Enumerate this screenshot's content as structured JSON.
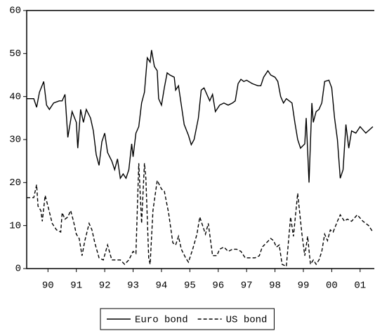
{
  "chart_data": {
    "type": "line",
    "xlim": [
      1989.75,
      2002.0
    ],
    "ylim": [
      0,
      60
    ],
    "yticks": [
      0,
      10,
      20,
      30,
      40,
      50,
      60
    ],
    "xticks": [
      {
        "value": 1990.5,
        "label": "90"
      },
      {
        "value": 1991.5,
        "label": "91"
      },
      {
        "value": 1992.5,
        "label": "92"
      },
      {
        "value": 1993.5,
        "label": "93"
      },
      {
        "value": 1994.5,
        "label": "94"
      },
      {
        "value": 1995.5,
        "label": "95"
      },
      {
        "value": 1996.5,
        "label": "96"
      },
      {
        "value": 1997.5,
        "label": "97"
      },
      {
        "value": 1998.5,
        "label": "98"
      },
      {
        "value": 1999.5,
        "label": "99"
      },
      {
        "value": 2000.5,
        "label": "00"
      },
      {
        "value": 2001.5,
        "label": "01"
      }
    ],
    "grid": false,
    "legend": "bottom",
    "series": [
      {
        "name": "Euro bond",
        "color": "#000000",
        "line_style": "solid",
        "x": [
          1989.75,
          1989.9,
          1990.0,
          1990.1,
          1990.2,
          1990.35,
          1990.45,
          1990.55,
          1990.7,
          1990.9,
          1991.0,
          1991.1,
          1991.2,
          1991.35,
          1991.5,
          1991.55,
          1991.65,
          1991.75,
          1991.85,
          1992.0,
          1992.1,
          1992.2,
          1992.3,
          1992.4,
          1992.5,
          1992.6,
          1992.75,
          1992.85,
          1992.95,
          1993.05,
          1993.15,
          1993.25,
          1993.35,
          1993.45,
          1993.5,
          1993.6,
          1993.7,
          1993.8,
          1993.9,
          1994.0,
          1994.1,
          1994.15,
          1994.25,
          1994.35,
          1994.4,
          1994.5,
          1994.6,
          1994.7,
          1994.8,
          1994.95,
          1995.0,
          1995.1,
          1995.2,
          1995.3,
          1995.45,
          1995.55,
          1995.65,
          1995.8,
          1995.9,
          1996.0,
          1996.1,
          1996.2,
          1996.3,
          1996.4,
          1996.55,
          1996.7,
          1996.85,
          1997.0,
          1997.1,
          1997.2,
          1997.3,
          1997.4,
          1997.5,
          1997.7,
          1997.9,
          1998.0,
          1998.1,
          1998.25,
          1998.35,
          1998.5,
          1998.6,
          1998.7,
          1998.8,
          1998.9,
          1999.0,
          1999.1,
          1999.2,
          1999.3,
          1999.4,
          1999.55,
          1999.6,
          1999.7,
          1999.8,
          1999.85,
          1999.95,
          2000.05,
          2000.15,
          2000.25,
          2000.4,
          2000.5,
          2000.6,
          2000.7,
          2000.8,
          2000.9,
          2001.0,
          2001.1,
          2001.2,
          2001.35,
          2001.5,
          2001.7,
          2001.95
        ],
        "values": [
          39.5,
          39.5,
          39.5,
          37.5,
          41,
          43.5,
          38,
          37,
          38.5,
          39,
          39,
          40.5,
          30.5,
          36.5,
          34,
          28,
          37,
          34,
          37,
          35,
          32,
          26.5,
          24,
          29.5,
          31.5,
          27,
          25,
          23,
          25.5,
          21,
          22,
          21,
          23,
          29,
          26,
          31.5,
          33,
          38.5,
          41,
          49,
          48,
          50.8,
          47,
          46,
          39.5,
          38,
          42,
          45.5,
          45,
          44.5,
          41.5,
          42.5,
          38,
          33.5,
          31,
          28.8,
          30,
          35,
          41.5,
          42,
          40.5,
          39,
          40.5,
          36.5,
          38,
          38.5,
          38,
          38.5,
          39,
          43,
          44,
          43.5,
          43.8,
          43,
          42.5,
          42.5,
          44.5,
          46,
          45,
          44.5,
          43.5,
          40,
          38.5,
          39.5,
          39,
          38.5,
          34,
          30,
          28,
          29,
          35,
          20,
          38.5,
          34,
          36.5,
          37,
          38.5,
          43.5,
          43.8,
          42,
          35,
          30,
          21,
          23,
          33.5,
          28,
          32,
          31.5,
          33,
          31.5,
          33
        ]
      },
      {
        "name": "US bond",
        "color": "#000000",
        "line_style": "dashed",
        "x": [
          1989.75,
          1990.0,
          1990.1,
          1990.15,
          1990.25,
          1990.3,
          1990.4,
          1990.5,
          1990.65,
          1990.8,
          1990.95,
          1991.0,
          1991.1,
          1991.2,
          1991.3,
          1991.4,
          1991.5,
          1991.6,
          1991.7,
          1991.8,
          1991.95,
          1992.05,
          1992.15,
          1992.3,
          1992.45,
          1992.6,
          1992.75,
          1992.9,
          1993.05,
          1993.2,
          1993.35,
          1993.5,
          1993.6,
          1993.7,
          1993.8,
          1993.9,
          1993.95,
          1994.05,
          1994.1,
          1994.2,
          1994.35,
          1994.5,
          1994.6,
          1994.75,
          1994.9,
          1995.0,
          1995.1,
          1995.2,
          1995.35,
          1995.45,
          1995.6,
          1995.75,
          1995.85,
          1995.95,
          1996.05,
          1996.15,
          1996.3,
          1996.45,
          1996.55,
          1996.7,
          1996.85,
          1997.0,
          1997.15,
          1997.3,
          1997.45,
          1997.6,
          1997.8,
          1997.95,
          1998.05,
          1998.2,
          1998.35,
          1998.45,
          1998.55,
          1998.65,
          1998.75,
          1998.9,
          1999.05,
          1999.15,
          1999.3,
          1999.45,
          1999.55,
          1999.65,
          1999.75,
          1999.85,
          1999.95,
          2000.05,
          2000.15,
          2000.25,
          2000.35,
          2000.45,
          2000.55,
          2000.7,
          2000.8,
          2000.95,
          2001.05,
          2001.2,
          2001.4,
          2001.6,
          2001.8,
          2001.95
        ],
        "values": [
          16.5,
          16.5,
          19.5,
          14.5,
          13.5,
          11,
          17,
          14.5,
          10.5,
          9,
          8.5,
          13,
          11.5,
          12,
          13.5,
          11,
          8,
          7,
          3,
          6.5,
          10.5,
          9,
          6,
          2.5,
          2,
          5.5,
          2,
          2,
          2,
          1,
          2,
          4,
          3.5,
          24.5,
          10.5,
          24.5,
          21,
          2.5,
          1,
          13.5,
          20.5,
          18.5,
          18,
          13,
          6,
          5.5,
          7.5,
          4.5,
          2.5,
          1.5,
          4.5,
          8,
          12,
          10,
          8,
          10.5,
          3,
          3,
          4.5,
          5,
          4,
          4.5,
          4.5,
          4,
          2.5,
          2.5,
          2.5,
          3,
          5,
          6,
          7,
          6.5,
          5,
          5.5,
          1,
          0.5,
          12,
          7.5,
          17.5,
          8,
          3,
          7.5,
          1,
          2,
          1,
          2,
          4,
          8,
          6.5,
          9,
          8.5,
          11,
          12.5,
          11,
          11.5,
          11,
          12.5,
          11,
          10,
          8.5
        ]
      }
    ]
  }
}
